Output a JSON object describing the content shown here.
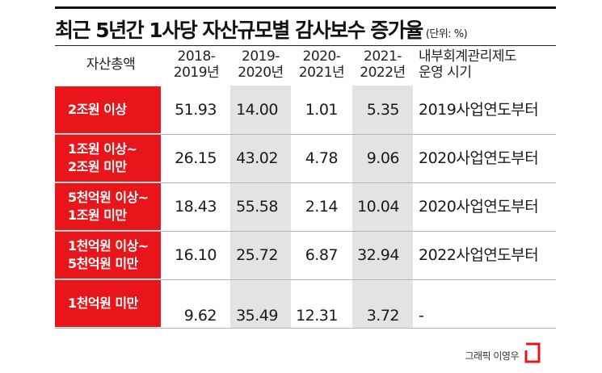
{
  "title": "최근 5년간 1사당 자산규모별 감사보수 증가율",
  "unit": "(단위: %)",
  "headers": {
    "label": "자산총액",
    "col1": [
      "2018-",
      "2019년"
    ],
    "col2": [
      "2019-",
      "2020년"
    ],
    "col3": [
      "2020-",
      "2021년"
    ],
    "col4": [
      "2021-",
      "2022년"
    ],
    "note": [
      "내부회계관리제도",
      "운영 시기"
    ]
  },
  "rows": [
    {
      "label": [
        "2조원 이상"
      ],
      "v1": "51.93",
      "v2": "14.00",
      "v3": "1.01",
      "v4": "5.35",
      "note": "2019사업연도부터"
    },
    {
      "label": [
        "1조원 이상~",
        "2조원 미만"
      ],
      "v1": "26.15",
      "v2": "43.02",
      "v3": "4.78",
      "v4": "9.06",
      "note": "2020사업연도부터"
    },
    {
      "label": [
        "5천억원 이상~",
        "1조원 미만"
      ],
      "v1": "18.43",
      "v2": "55.58",
      "v3": "2.14",
      "v4": "10.04",
      "note": "2020사업연도부터"
    },
    {
      "label": [
        "1천억원 이상~",
        "5천억원 미만"
      ],
      "v1": "16.10",
      "v2": "25.72",
      "v3": "6.87",
      "v4": "32.94",
      "note": "2022사업연도부터"
    },
    {
      "label": [
        "1천억원 미만"
      ],
      "v1": "9.62",
      "v2": "35.49",
      "v3": "12.31",
      "v4": "3.72",
      "note": "-"
    }
  ],
  "credit": "그래픽 이영우",
  "colors": {
    "accent": "#e8151b",
    "stripe": "#e3e3e3"
  },
  "icons": {
    "logo": "red-bracket-logo"
  }
}
